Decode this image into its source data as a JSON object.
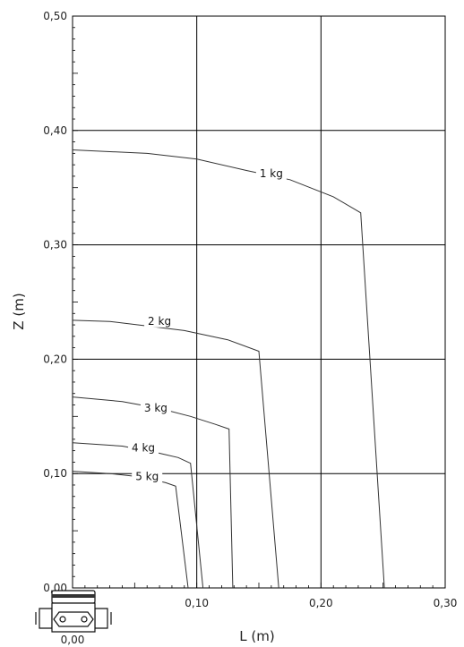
{
  "chart_data": {
    "type": "line",
    "xlabel": "L (m)",
    "ylabel": "Z (m)",
    "xlim": [
      0,
      0.3
    ],
    "ylim": [
      0,
      0.5
    ],
    "x_ticks": [
      "0,10",
      "0,20",
      "0,30"
    ],
    "y_ticks": [
      "0,00",
      "0,10",
      "0,20",
      "0,30",
      "0,40",
      "0,50"
    ],
    "origin_x_label": "0,00",
    "grid": true,
    "series": [
      {
        "name": "1 kg",
        "points": [
          [
            0.0,
            0.383
          ],
          [
            0.06,
            0.38
          ],
          [
            0.1,
            0.375
          ],
          [
            0.14,
            0.365
          ],
          [
            0.175,
            0.357
          ],
          [
            0.21,
            0.342
          ],
          [
            0.232,
            0.328
          ],
          [
            0.251,
            0.0
          ]
        ]
      },
      {
        "name": "2 kg",
        "points": [
          [
            0.0,
            0.234
          ],
          [
            0.03,
            0.233
          ],
          [
            0.06,
            0.229
          ],
          [
            0.09,
            0.225
          ],
          [
            0.125,
            0.217
          ],
          [
            0.15,
            0.207
          ],
          [
            0.166,
            0.0
          ]
        ]
      },
      {
        "name": "3 kg",
        "points": [
          [
            0.0,
            0.167
          ],
          [
            0.04,
            0.163
          ],
          [
            0.07,
            0.157
          ],
          [
            0.095,
            0.15
          ],
          [
            0.115,
            0.143
          ],
          [
            0.126,
            0.139
          ],
          [
            0.129,
            0.0
          ]
        ]
      },
      {
        "name": "4 kg",
        "points": [
          [
            0.0,
            0.127
          ],
          [
            0.04,
            0.124
          ],
          [
            0.065,
            0.119
          ],
          [
            0.085,
            0.114
          ],
          [
            0.095,
            0.109
          ],
          [
            0.105,
            0.0
          ]
        ]
      },
      {
        "name": "5 kg",
        "points": [
          [
            0.0,
            0.102
          ],
          [
            0.03,
            0.1
          ],
          [
            0.055,
            0.097
          ],
          [
            0.075,
            0.092
          ],
          [
            0.083,
            0.089
          ],
          [
            0.093,
            0.0
          ]
        ]
      }
    ],
    "annotations": [
      {
        "text": "1 kg",
        "x": 0.16,
        "y": 0.36
      },
      {
        "text": "2 kg",
        "x": 0.07,
        "y": 0.231
      },
      {
        "text": "3 kg",
        "x": 0.067,
        "y": 0.155
      },
      {
        "text": "4 kg",
        "x": 0.057,
        "y": 0.12
      },
      {
        "text": "5 kg",
        "x": 0.06,
        "y": 0.095
      }
    ]
  }
}
